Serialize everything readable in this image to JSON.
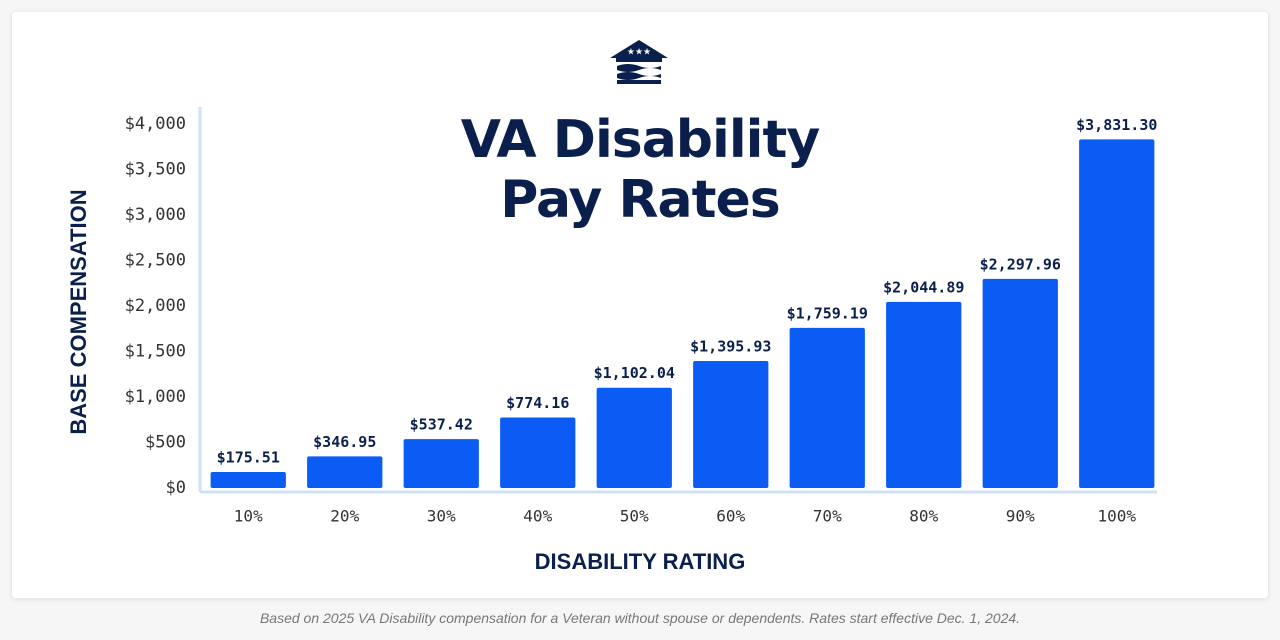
{
  "chart_data": {
    "type": "bar",
    "title": "VA Disability Pay Rates",
    "categories": [
      "10%",
      "20%",
      "30%",
      "40%",
      "50%",
      "60%",
      "70%",
      "80%",
      "90%",
      "100%"
    ],
    "values": [
      175.51,
      346.95,
      537.42,
      774.16,
      1102.04,
      1395.93,
      1759.19,
      2044.89,
      2297.96,
      3831.3
    ],
    "value_labels": [
      "$175.51",
      "$346.95",
      "$537.42",
      "$774.16",
      "$1,102.04",
      "$1,395.93",
      "$1,759.19",
      "$2,044.89",
      "$2,297.96",
      "$3,831.30"
    ],
    "color": "#0a5cf5",
    "ylim": [
      0,
      4000
    ],
    "yticks": [
      {
        "value": 0,
        "label": "$0"
      },
      {
        "value": 500,
        "label": "$500"
      },
      {
        "value": 1000,
        "label": "$1,000"
      },
      {
        "value": 1500,
        "label": "$1,500"
      },
      {
        "value": 2000,
        "label": "$2,000"
      },
      {
        "value": 2500,
        "label": "$2,500"
      },
      {
        "value": 3000,
        "label": "$3,000"
      },
      {
        "value": 3500,
        "label": "$3,500"
      },
      {
        "value": 4000,
        "label": "$4,000"
      }
    ],
    "y_label": "BASE COMPENSATION",
    "x_label": "DISABILITY RATING",
    "grid": false,
    "caption": "Based on 2025 VA Disability compensation for a Veteran without spouse or dependents. Rates start effective Dec. 1, 2024."
  }
}
